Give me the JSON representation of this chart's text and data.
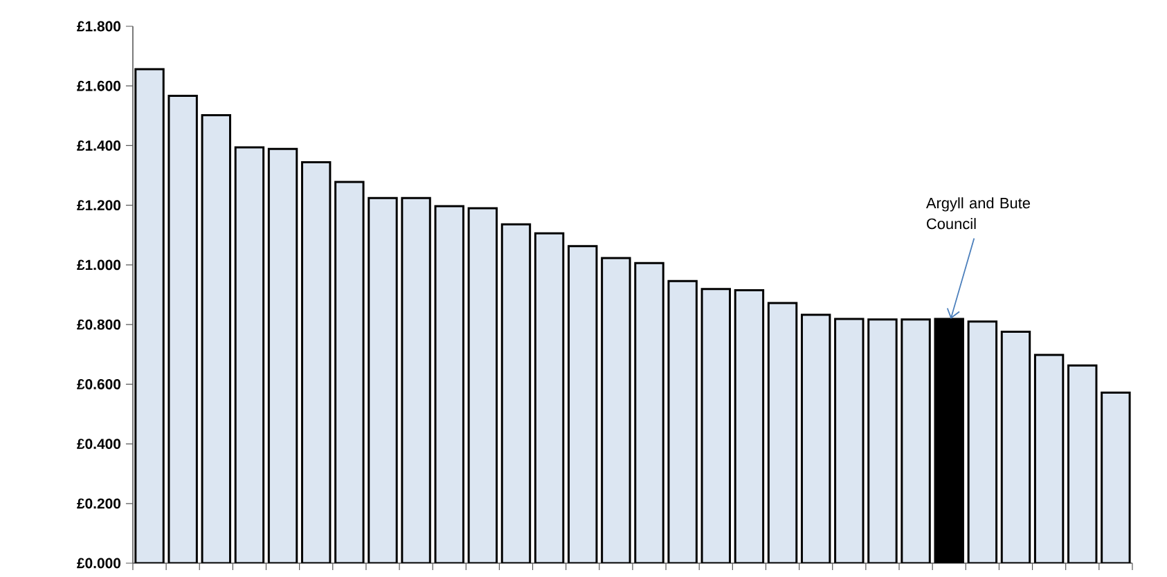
{
  "chart_data": {
    "type": "bar",
    "categories": [
      null,
      null,
      null,
      null,
      null,
      null,
      null,
      null,
      null,
      null,
      null,
      null,
      null,
      null,
      null,
      null,
      null,
      null,
      null,
      null,
      null,
      null,
      null,
      null,
      null,
      null,
      null,
      null,
      null,
      null
    ],
    "values": [
      1.656,
      1.567,
      1.502,
      1.394,
      1.389,
      1.344,
      1.278,
      1.224,
      1.224,
      1.197,
      1.19,
      1.136,
      1.106,
      1.063,
      1.023,
      1.006,
      0.946,
      0.919,
      0.915,
      0.872,
      0.833,
      0.819,
      0.817,
      0.817,
      0.819,
      0.81,
      0.776,
      0.698,
      0.663,
      0.572
    ],
    "colors": [
      "#dce6f2",
      "#dce6f2",
      "#dce6f2",
      "#dce6f2",
      "#dce6f2",
      "#dce6f2",
      "#dce6f2",
      "#dce6f2",
      "#dce6f2",
      "#dce6f2",
      "#dce6f2",
      "#dce6f2",
      "#dce6f2",
      "#dce6f2",
      "#dce6f2",
      "#dce6f2",
      "#dce6f2",
      "#dce6f2",
      "#dce6f2",
      "#dce6f2",
      "#dce6f2",
      "#dce6f2",
      "#dce6f2",
      "#dce6f2",
      "#000000",
      "#dce6f2",
      "#dce6f2",
      "#dce6f2",
      "#dce6f2",
      "#dce6f2"
    ],
    "ylim": [
      0,
      1.8
    ],
    "yticks": [
      {
        "value": 0,
        "label": "£0.000"
      },
      {
        "value": 0.2,
        "label": "£0.200"
      },
      {
        "value": 0.4,
        "label": "£0.400"
      },
      {
        "value": 0.6,
        "label": "£0.600"
      },
      {
        "value": 0.8,
        "label": "£0.800"
      },
      {
        "value": 1.0,
        "label": "£1.000"
      },
      {
        "value": 1.2,
        "label": "£1.200"
      },
      {
        "value": 1.4,
        "label": "£1.400"
      },
      {
        "value": 1.6,
        "label": "£1.600"
      },
      {
        "value": 1.8,
        "label": "£1.800"
      }
    ],
    "annotations": [
      "Argyll and Bute Council"
    ],
    "grid": false
  }
}
